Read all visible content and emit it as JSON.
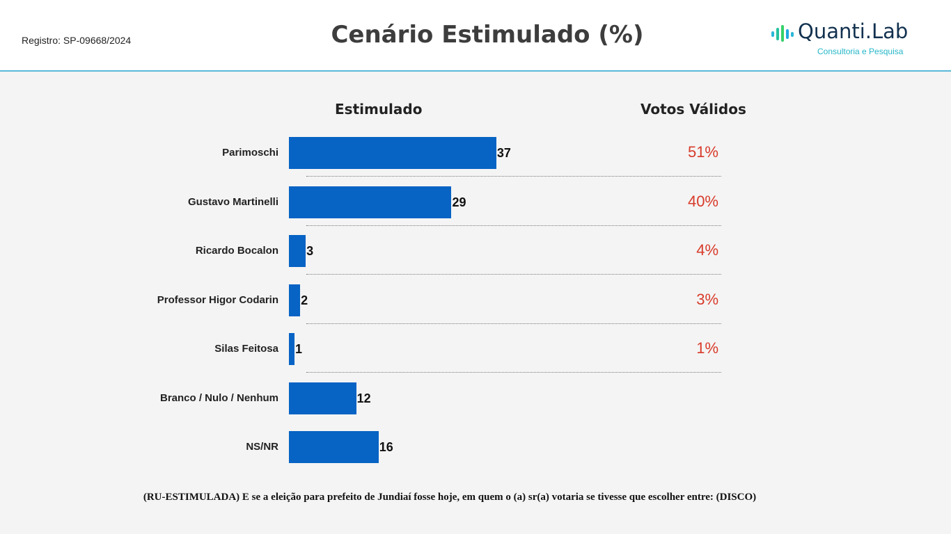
{
  "header": {
    "registro": "Registro: SP-09668/2024",
    "logo_name": "Quanti.Lab",
    "logo_sub": "Consultoria e Pesquisa"
  },
  "chart_data": {
    "type": "bar",
    "title": "Cenário Estimulado (%)",
    "columns": [
      "Estimulado",
      "Votos Válidos"
    ],
    "categories": [
      "Parimoschi",
      "Gustavo Martinelli",
      "Ricardo Bocalon",
      "Professor Higor Codarin",
      "Silas Feitosa",
      "Branco / Nulo / Nenhum",
      "NS/NR"
    ],
    "values": [
      37,
      29,
      3,
      2,
      1,
      12,
      16
    ],
    "valid_votes": [
      "51%",
      "40%",
      "4%",
      "3%",
      "1%"
    ],
    "bar_color": "#0763c4",
    "valid_color": "#d83a2a"
  },
  "footnote": "(RU-ESTIMULADA) E se a eleição para prefeito de Jundiaí fosse hoje, em quem o (a) sr(a) votaria se tivesse que escolher entre: (DISCO)"
}
